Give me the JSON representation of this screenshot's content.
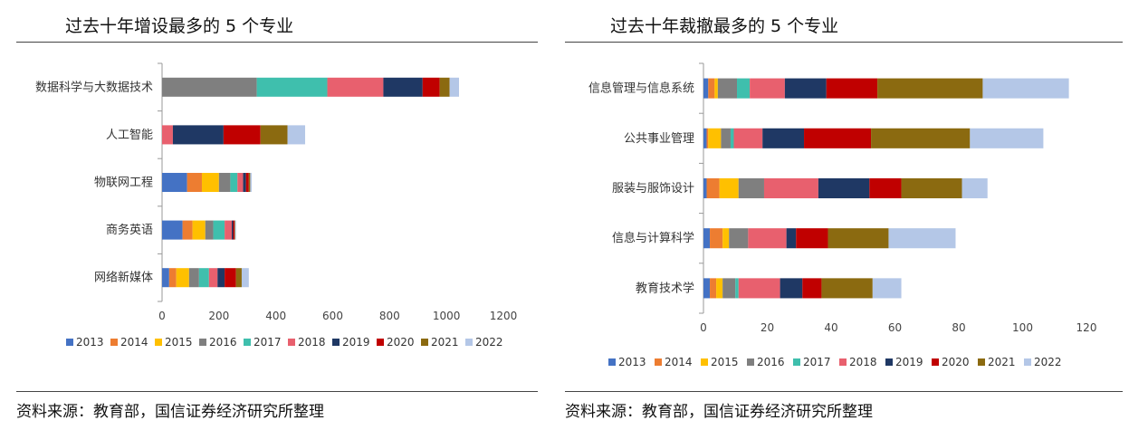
{
  "source_text": "资料来源：教育部，国信证券经济研究所整理",
  "colors": [
    "#4472c4",
    "#ed7d31",
    "#ffc000",
    "#7f7f7f",
    "#3fbfad",
    "#e8606e",
    "#1f3864",
    "#c00000",
    "#8b6a10",
    "#b4c7e7"
  ],
  "chart_data": [
    {
      "type": "bar",
      "orientation": "horizontal",
      "stacked": true,
      "title": "过去十年增设最多的 5 个专业",
      "categories": [
        "数据科学与大数据技术",
        "人工智能",
        "物联网工程",
        "商务英语",
        "网络新媒体"
      ],
      "xlim": [
        0,
        1200
      ],
      "xticks": [
        0,
        200,
        400,
        600,
        800,
        1000,
        1200
      ],
      "series": [
        {
          "name": "2013",
          "values": [
            0,
            0,
            88,
            72,
            25
          ]
        },
        {
          "name": "2014",
          "values": [
            0,
            0,
            52,
            35,
            25
          ]
        },
        {
          "name": "2015",
          "values": [
            0,
            0,
            60,
            45,
            45
          ]
        },
        {
          "name": "2016",
          "values": [
            333,
            0,
            40,
            28,
            35
          ]
        },
        {
          "name": "2017",
          "values": [
            248,
            0,
            25,
            40,
            35
          ]
        },
        {
          "name": "2018",
          "values": [
            197,
            38,
            20,
            25,
            30
          ]
        },
        {
          "name": "2019",
          "values": [
            138,
            178,
            10,
            5,
            25
          ]
        },
        {
          "name": "2020",
          "values": [
            60,
            130,
            10,
            5,
            40
          ]
        },
        {
          "name": "2021",
          "values": [
            35,
            95,
            5,
            2,
            20
          ]
        },
        {
          "name": "2022",
          "values": [
            33,
            62,
            5,
            3,
            25
          ]
        }
      ],
      "legend_position": "bottom"
    },
    {
      "type": "bar",
      "orientation": "horizontal",
      "stacked": true,
      "title": "过去十年裁撤最多的 5 个专业",
      "categories": [
        "信息管理与信息系统",
        "公共事业管理",
        "服装与服饰设计",
        "信息与计算科学",
        "教育技术学"
      ],
      "xlim": [
        0,
        120
      ],
      "xticks": [
        0,
        20,
        40,
        60,
        80,
        100,
        120
      ],
      "series": [
        {
          "name": "2013",
          "values": [
            1.5,
            1,
            1,
            2,
            2
          ]
        },
        {
          "name": "2014",
          "values": [
            2,
            0.5,
            4,
            4,
            2
          ]
        },
        {
          "name": "2015",
          "values": [
            1,
            4,
            6,
            2,
            2
          ]
        },
        {
          "name": "2016",
          "values": [
            6,
            3,
            8,
            6,
            4
          ]
        },
        {
          "name": "2017",
          "values": [
            4,
            1,
            0,
            0,
            1
          ]
        },
        {
          "name": "2018",
          "values": [
            11,
            9,
            17,
            12,
            13
          ]
        },
        {
          "name": "2019",
          "values": [
            13,
            13,
            16,
            3,
            7
          ]
        },
        {
          "name": "2020",
          "values": [
            16,
            21,
            10,
            10,
            6
          ]
        },
        {
          "name": "2021",
          "values": [
            33,
            31,
            19,
            19,
            16
          ]
        },
        {
          "name": "2022",
          "values": [
            27,
            23,
            8,
            21,
            9
          ]
        }
      ],
      "legend_position": "bottom"
    }
  ]
}
